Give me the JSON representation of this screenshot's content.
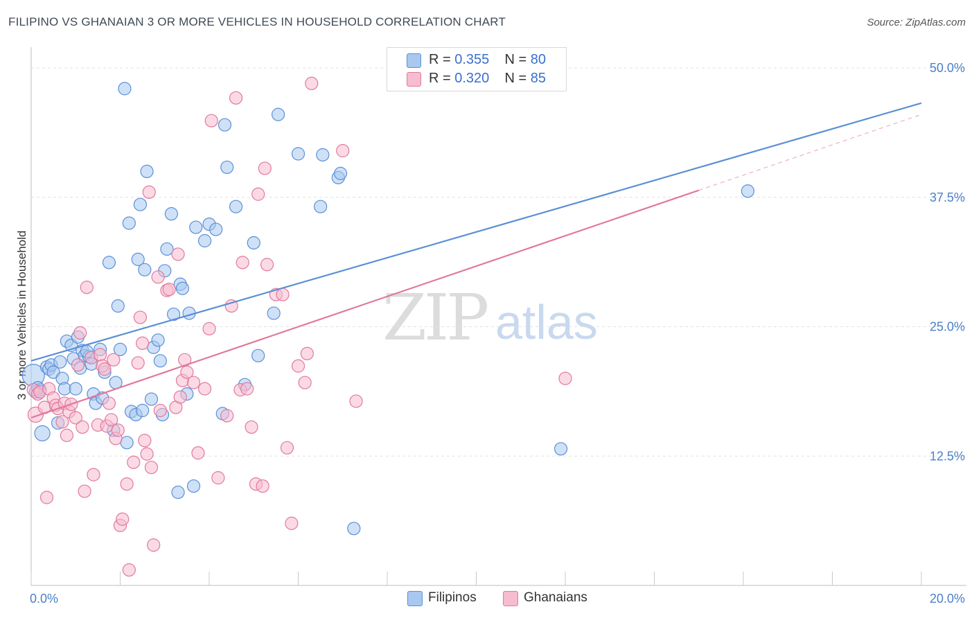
{
  "title": "FILIPINO VS GHANAIAN 3 OR MORE VEHICLES IN HOUSEHOLD CORRELATION CHART",
  "source": "Source: ZipAtlas.com",
  "watermark": {
    "zip": "ZIP",
    "atlas": "atlas"
  },
  "legend": {
    "rows": [
      {
        "r_label": "R = ",
        "r_value": "0.355",
        "n_label": "N = ",
        "n_value": "80",
        "color": "#a8c8f0",
        "border": "#5b8fd6"
      },
      {
        "r_label": "R = ",
        "r_value": "0.320",
        "n_label": "N = ",
        "n_value": "85",
        "color": "#f7bcd0",
        "border": "#e0799c"
      }
    ]
  },
  "bottom_legend": [
    {
      "label": "Filipinos",
      "color": "#a8c8f0",
      "border": "#5b8fd6"
    },
    {
      "label": "Ghanaians",
      "color": "#f7bcd0",
      "border": "#e0799c"
    }
  ],
  "chart_data": {
    "type": "scatter",
    "title": "FILIPINO VS GHANAIAN 3 OR MORE VEHICLES IN HOUSEHOLD CORRELATION CHART",
    "xlabel": "",
    "ylabel": "3 or more Vehicles in Household",
    "xlim": [
      0,
      20
    ],
    "ylim": [
      0,
      50
    ],
    "x_ticks": [
      "0.0%",
      "20.0%"
    ],
    "y_ticks": [
      {
        "value": 50,
        "label": "50.0%"
      },
      {
        "value": 37.5,
        "label": "37.5%"
      },
      {
        "value": 25,
        "label": "25.0%"
      },
      {
        "value": 12.5,
        "label": "12.5%"
      }
    ],
    "grid": true,
    "series": [
      {
        "name": "Filipinos",
        "color": "#5b8fd6",
        "fill": "#a8c8f0",
        "r": 0.355,
        "n": 80,
        "trend": {
          "x": [
            0,
            20
          ],
          "y": [
            21.7,
            46.6
          ],
          "dash_from": null
        },
        "points": [
          [
            0.05,
            20.3
          ],
          [
            0.2,
            18.9
          ],
          [
            0.25,
            14.7
          ],
          [
            0.35,
            21.1
          ],
          [
            0.4,
            20.9
          ],
          [
            0.45,
            21.3
          ],
          [
            0.5,
            20.6
          ],
          [
            0.6,
            15.7
          ],
          [
            0.65,
            21.6
          ],
          [
            0.7,
            20.0
          ],
          [
            0.75,
            19.0
          ],
          [
            0.8,
            23.6
          ],
          [
            0.9,
            23.2
          ],
          [
            0.95,
            21.9
          ],
          [
            1.0,
            19.0
          ],
          [
            1.05,
            24.0
          ],
          [
            1.1,
            21.0
          ],
          [
            1.15,
            22.7
          ],
          [
            1.2,
            22.2
          ],
          [
            1.3,
            22.1
          ],
          [
            1.35,
            21.4
          ],
          [
            1.4,
            18.5
          ],
          [
            1.45,
            17.6
          ],
          [
            1.55,
            22.8
          ],
          [
            1.6,
            18.1
          ],
          [
            1.65,
            20.6
          ],
          [
            1.75,
            31.2
          ],
          [
            1.85,
            15.0
          ],
          [
            1.9,
            19.6
          ],
          [
            1.95,
            27.0
          ],
          [
            2.0,
            22.8
          ],
          [
            2.1,
            48.0
          ],
          [
            2.15,
            13.8
          ],
          [
            2.2,
            35.0
          ],
          [
            2.25,
            16.8
          ],
          [
            2.35,
            16.5
          ],
          [
            2.4,
            31.5
          ],
          [
            2.45,
            36.8
          ],
          [
            2.55,
            30.5
          ],
          [
            2.6,
            40.0
          ],
          [
            2.7,
            18.0
          ],
          [
            2.75,
            23.0
          ],
          [
            2.85,
            23.7
          ],
          [
            2.9,
            21.7
          ],
          [
            2.95,
            16.5
          ],
          [
            3.0,
            30.4
          ],
          [
            3.05,
            32.5
          ],
          [
            3.15,
            35.9
          ],
          [
            3.2,
            26.2
          ],
          [
            3.3,
            9.0
          ],
          [
            3.35,
            29.1
          ],
          [
            3.4,
            28.7
          ],
          [
            3.5,
            18.5
          ],
          [
            3.55,
            26.3
          ],
          [
            3.65,
            9.6
          ],
          [
            3.7,
            34.6
          ],
          [
            3.9,
            33.3
          ],
          [
            4.0,
            34.9
          ],
          [
            4.15,
            34.4
          ],
          [
            4.3,
            16.6
          ],
          [
            4.35,
            44.5
          ],
          [
            4.4,
            40.4
          ],
          [
            4.6,
            36.6
          ],
          [
            4.8,
            19.4
          ],
          [
            5.0,
            33.1
          ],
          [
            5.1,
            22.2
          ],
          [
            5.45,
            26.3
          ],
          [
            5.55,
            45.5
          ],
          [
            6.0,
            41.7
          ],
          [
            6.5,
            36.6
          ],
          [
            6.55,
            41.6
          ],
          [
            6.9,
            39.4
          ],
          [
            6.95,
            39.8
          ],
          [
            7.25,
            5.5
          ],
          [
            11.9,
            13.2
          ],
          [
            16.1,
            38.1
          ],
          [
            0.1,
            18.7
          ],
          [
            0.15,
            19.1
          ],
          [
            1.25,
            22.6
          ],
          [
            2.5,
            16.9
          ]
        ]
      },
      {
        "name": "Ghanaians",
        "color": "#e0799c",
        "fill": "#f7bcd0",
        "r": 0.32,
        "n": 85,
        "trend": {
          "x": [
            0,
            20
          ],
          "y": [
            16.2,
            45.5
          ],
          "dash_from": 15
        },
        "points": [
          [
            0.05,
            18.9
          ],
          [
            0.1,
            16.5
          ],
          [
            0.15,
            18.5
          ],
          [
            0.2,
            18.7
          ],
          [
            0.3,
            17.2
          ],
          [
            0.35,
            8.5
          ],
          [
            0.4,
            19.0
          ],
          [
            0.5,
            18.1
          ],
          [
            0.55,
            17.4
          ],
          [
            0.6,
            17.1
          ],
          [
            0.7,
            15.8
          ],
          [
            0.75,
            17.6
          ],
          [
            0.8,
            14.5
          ],
          [
            0.85,
            16.8
          ],
          [
            0.9,
            17.5
          ],
          [
            1.0,
            16.2
          ],
          [
            1.05,
            21.3
          ],
          [
            1.1,
            24.4
          ],
          [
            1.15,
            15.3
          ],
          [
            1.2,
            9.1
          ],
          [
            1.25,
            28.8
          ],
          [
            1.35,
            22.0
          ],
          [
            1.4,
            10.7
          ],
          [
            1.5,
            15.5
          ],
          [
            1.55,
            22.3
          ],
          [
            1.6,
            21.2
          ],
          [
            1.65,
            20.9
          ],
          [
            1.7,
            15.4
          ],
          [
            1.75,
            17.6
          ],
          [
            1.8,
            16.0
          ],
          [
            1.85,
            21.8
          ],
          [
            1.9,
            14.2
          ],
          [
            1.95,
            15.0
          ],
          [
            2.0,
            5.8
          ],
          [
            2.05,
            6.4
          ],
          [
            2.15,
            9.8
          ],
          [
            2.2,
            1.5
          ],
          [
            2.3,
            11.9
          ],
          [
            2.4,
            21.5
          ],
          [
            2.45,
            25.9
          ],
          [
            2.5,
            23.4
          ],
          [
            2.55,
            14.0
          ],
          [
            2.6,
            12.7
          ],
          [
            2.65,
            38.0
          ],
          [
            2.7,
            11.4
          ],
          [
            2.75,
            3.9
          ],
          [
            2.85,
            29.8
          ],
          [
            2.9,
            16.9
          ],
          [
            3.05,
            28.5
          ],
          [
            3.1,
            28.6
          ],
          [
            3.25,
            17.2
          ],
          [
            3.3,
            32.0
          ],
          [
            3.35,
            18.2
          ],
          [
            3.4,
            19.8
          ],
          [
            3.45,
            21.8
          ],
          [
            3.5,
            20.6
          ],
          [
            3.65,
            19.6
          ],
          [
            3.75,
            12.8
          ],
          [
            3.9,
            19.0
          ],
          [
            4.0,
            24.8
          ],
          [
            4.05,
            44.9
          ],
          [
            4.2,
            10.4
          ],
          [
            4.4,
            16.4
          ],
          [
            4.5,
            27.0
          ],
          [
            4.6,
            47.1
          ],
          [
            4.7,
            18.9
          ],
          [
            4.75,
            31.2
          ],
          [
            4.85,
            19.0
          ],
          [
            4.95,
            15.3
          ],
          [
            5.05,
            9.8
          ],
          [
            5.1,
            37.8
          ],
          [
            5.2,
            9.6
          ],
          [
            5.25,
            40.3
          ],
          [
            5.3,
            31.0
          ],
          [
            5.5,
            28.1
          ],
          [
            5.65,
            28.1
          ],
          [
            5.75,
            13.3
          ],
          [
            5.85,
            6.0
          ],
          [
            6.0,
            21.2
          ],
          [
            6.15,
            19.6
          ],
          [
            6.2,
            22.4
          ],
          [
            6.3,
            48.5
          ],
          [
            7.0,
            42.0
          ],
          [
            7.3,
            17.8
          ],
          [
            12.0,
            20.0
          ]
        ]
      }
    ]
  }
}
